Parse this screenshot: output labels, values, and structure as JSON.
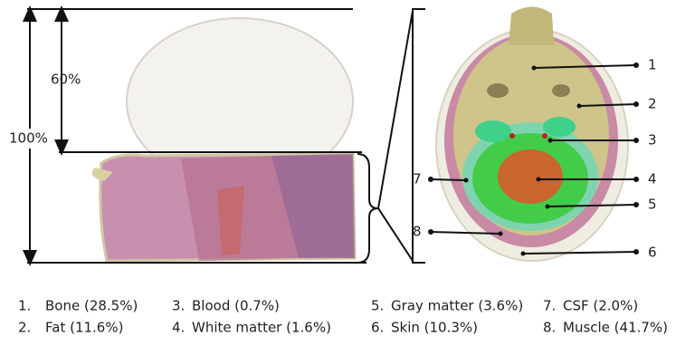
{
  "annotations": {
    "full_height": "100%",
    "partial_height": "60%"
  },
  "callouts": [
    "1",
    "2",
    "3",
    "4",
    "5",
    "6",
    "7",
    "8"
  ],
  "legend": [
    {
      "number": "1.",
      "label": "Bone (28.5%)"
    },
    {
      "number": "2.",
      "label": "Fat (11.6%)"
    },
    {
      "number": "3.",
      "label": "Blood (0.7%)"
    },
    {
      "number": "4.",
      "label": "White matter (1.6%)"
    },
    {
      "number": "5.",
      "label": "Gray matter (3.6%)"
    },
    {
      "number": "6.",
      "label": "Skin (10.3%)"
    },
    {
      "number": "7.",
      "label": "CSF (2.0%)"
    },
    {
      "number": "8.",
      "label": "Muscle (41.7%)"
    }
  ]
}
